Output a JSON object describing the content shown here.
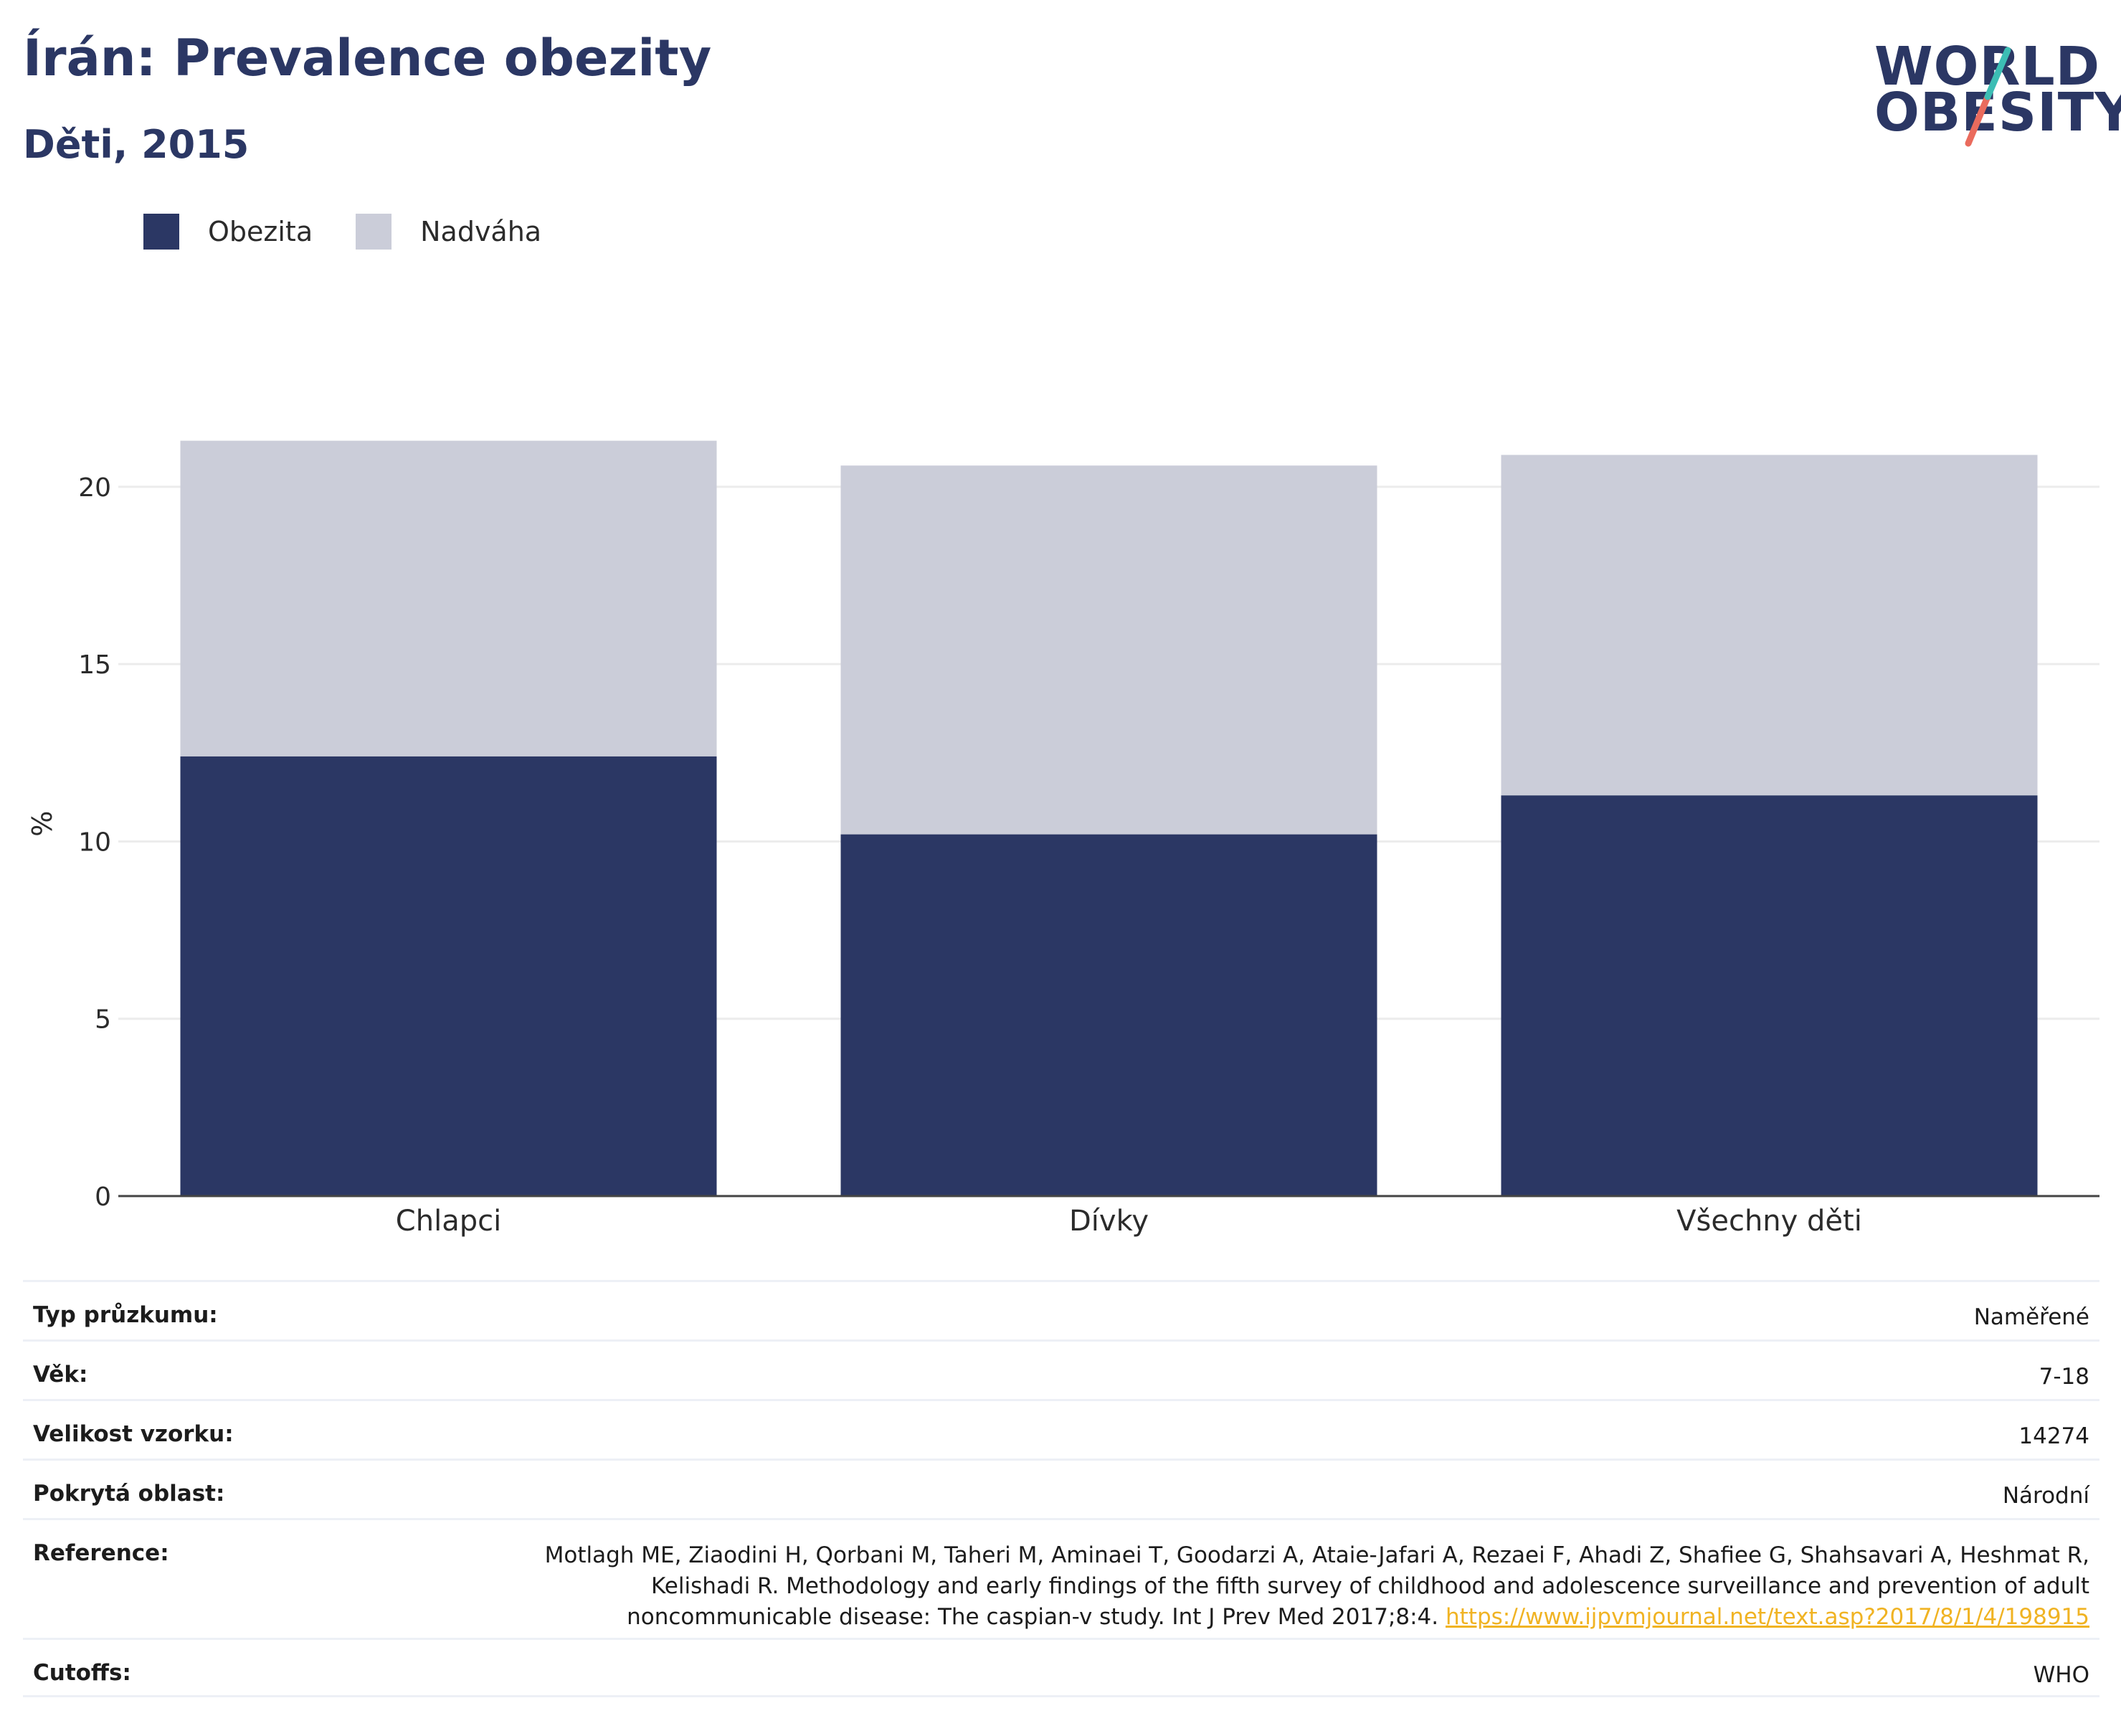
{
  "header": {
    "title": "Írán: Prevalence obezity",
    "subtitle": "Děti, 2015"
  },
  "logo": {
    "line1": "WORLD",
    "line2": "OBESITY",
    "slash_colors": [
      "#3cbdb4",
      "#ea6b5d"
    ]
  },
  "colors": {
    "obesity": "#2b3764",
    "overweight": "#cbcdd9",
    "title": "#2b3764",
    "link": "#f0b323"
  },
  "legend": {
    "items": [
      {
        "label": "Obezita",
        "color": "#2b3764"
      },
      {
        "label": "Nadváha",
        "color": "#cbcdd9"
      }
    ]
  },
  "chart_data": {
    "type": "bar",
    "stacked": true,
    "categories": [
      "Chlapci",
      "Dívky",
      "Všechny děti"
    ],
    "series": [
      {
        "name": "Obezita",
        "values": [
          12.4,
          10.2,
          11.3
        ]
      },
      {
        "name": "Nadváha",
        "values": [
          8.9,
          10.4,
          9.6
        ]
      }
    ],
    "ylabel": "%",
    "ylim": [
      0,
      22
    ],
    "yticks": [
      0,
      5,
      10,
      15,
      20
    ],
    "grid": true,
    "legend_position": "top-left"
  },
  "info_table": {
    "survey_type": {
      "label": "Typ průzkumu:",
      "value": "Naměřené"
    },
    "age": {
      "label": "Věk:",
      "value": "7-18"
    },
    "sample_size": {
      "label": "Velikost vzorku:",
      "value": "14274"
    },
    "coverage": {
      "label": "Pokrytá oblast:",
      "value": "Národní"
    },
    "reference": {
      "label": "Reference:",
      "text": "Motlagh ME, Ziaodini H, Qorbani M, Taheri M, Aminaei T, Goodarzi A, Ataie-Jafari A, Rezaei F, Ahadi Z, Shafiee G, Shahsavari A, Heshmat R, Kelishadi R. Methodology and early findings of the fifth survey of childhood and adolescence surveillance and prevention of adult noncommunicable disease: The caspian-v study. Int J Prev Med 2017;8:4. ",
      "link": "https://www.ijpvmjournal.net/text.asp?2017/8/1/4/198915"
    },
    "cutoffs": {
      "label": "Cutoffs:",
      "value": "WHO"
    }
  }
}
